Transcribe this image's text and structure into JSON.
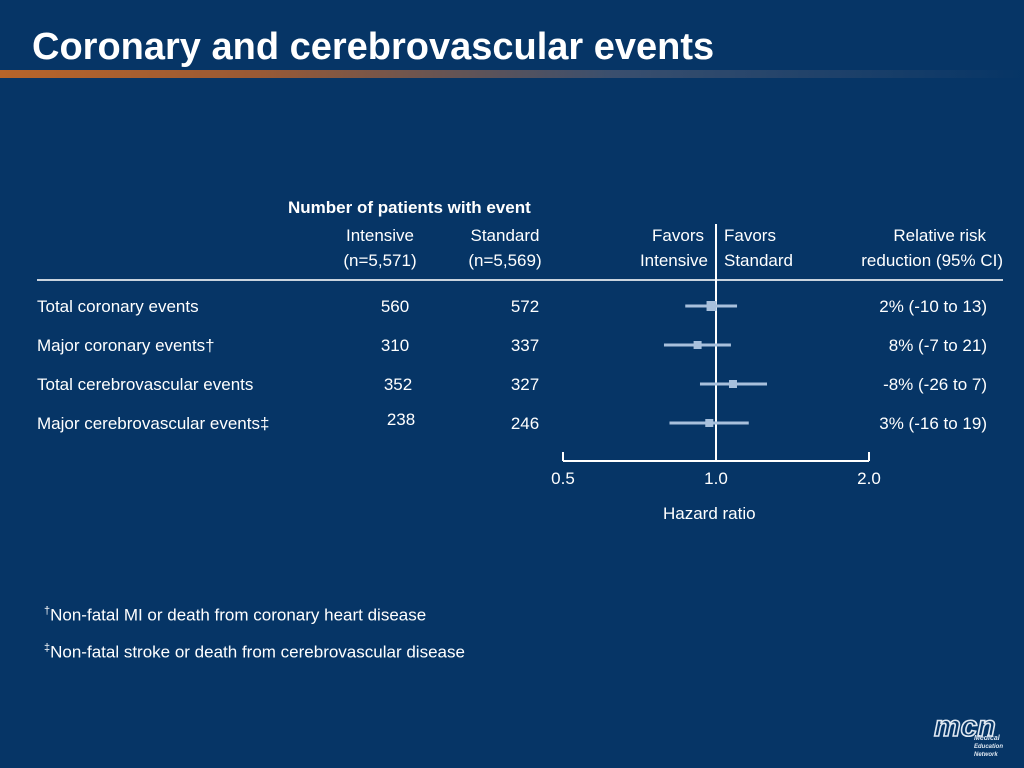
{
  "slide": {
    "title": "Coronary and cerebrovascular events"
  },
  "headers": {
    "group_title": "Number of patients with event",
    "intensive_line1": "Intensive",
    "intensive_line2": "(n=5,571)",
    "standard_line1": "Standard",
    "standard_line2": "(n=5,569)",
    "favors_intensive_line1": "Favors",
    "favors_intensive_line2": "Intensive",
    "favors_standard_line1": "Favors",
    "favors_standard_line2": "Standard",
    "rrr_line1": "Relative risk",
    "rrr_line2": "reduction (95% CI)"
  },
  "rows": [
    {
      "label": "Total coronary events",
      "intensive": "560",
      "standard": "572",
      "rrr": "2% (-10 to 13)"
    },
    {
      "label": "Major coronary events†",
      "intensive": "310",
      "standard": "337",
      "rrr": "8% (-7 to 21)"
    },
    {
      "label": "Total cerebrovascular events",
      "intensive": "352",
      "standard": "327",
      "rrr": "-8% (-26 to 7)"
    },
    {
      "label": "Major cerebrovascular events‡",
      "intensive": "238",
      "standard": "246",
      "rrr": "3% (-16 to 19)"
    }
  ],
  "chart_data": {
    "type": "forest",
    "xlabel": "Hazard ratio",
    "xscale": "log2",
    "xlim": [
      0.5,
      2.0
    ],
    "xticks": [
      "0.5",
      "1.0",
      "2.0"
    ],
    "reference_line": 1.0,
    "series": [
      {
        "category": "Total coronary events",
        "hr": 0.98,
        "ci": [
          0.87,
          1.1
        ]
      },
      {
        "category": "Major coronary events†",
        "hr": 0.92,
        "ci": [
          0.79,
          1.07
        ]
      },
      {
        "category": "Total cerebrovascular events",
        "hr": 1.08,
        "ci": [
          0.93,
          1.26
        ]
      },
      {
        "category": "Major cerebrovascular events‡",
        "hr": 0.97,
        "ci": [
          0.81,
          1.16
        ]
      }
    ]
  },
  "footnotes": {
    "dagger_mark": "†",
    "dagger_text": "Non-fatal MI or death from coronary heart disease",
    "ddagger_mark": "‡",
    "ddagger_text": "Non-fatal stroke or death from cerebrovascular disease"
  },
  "logo": {
    "mark": "mcn",
    "line1": "Medical",
    "line2": "Education",
    "line3": "Network"
  },
  "colors": {
    "background": "#063566",
    "marker": "#a8c0dc",
    "axis": "#ffffff",
    "accent_rule": "#b8652a"
  }
}
